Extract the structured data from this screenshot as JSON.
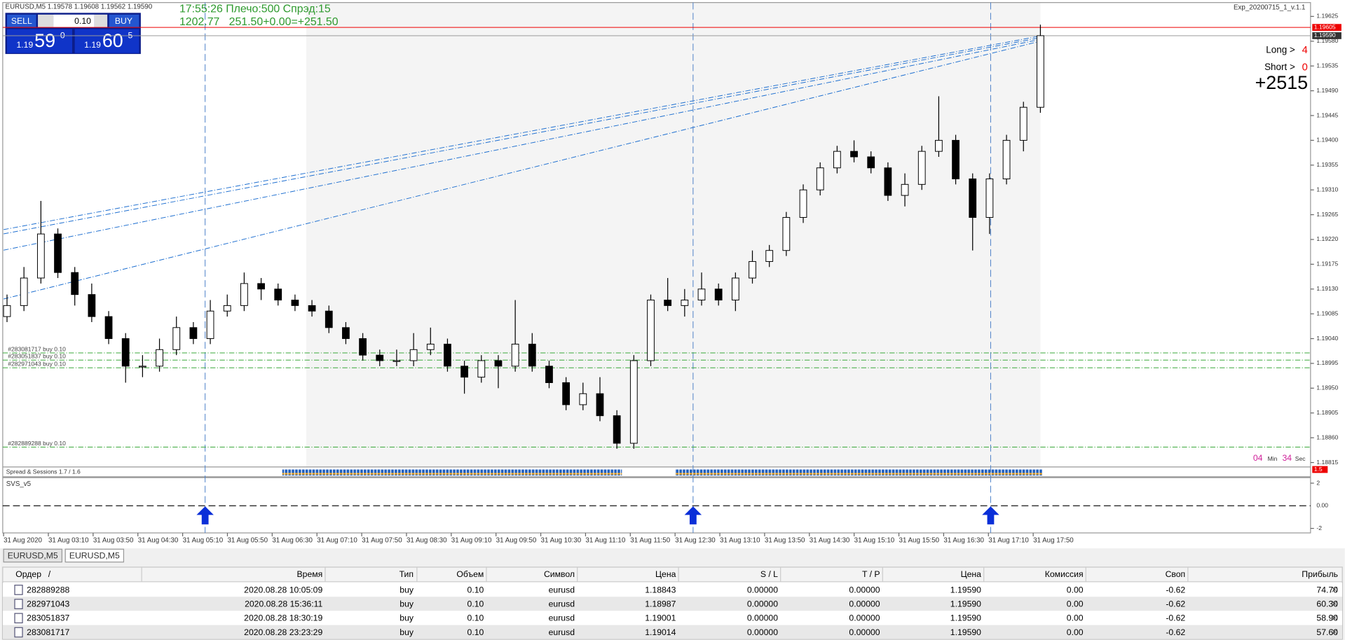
{
  "window": {
    "title": "EURUSD,M5  1.19578 1.19608 1.19562 1.19590",
    "expert": "Exp_20200715_1_v.1.1"
  },
  "trade_panel": {
    "sell": "SELL",
    "buy": "BUY",
    "lot": "0.10",
    "bid": {
      "big": "1.19",
      "pips": "59",
      "point": "0"
    },
    "ask": {
      "big": "1.19",
      "pips": "60",
      "point": "5"
    }
  },
  "info": {
    "line1": "17:55:26 Плечо:500 Спрэд:15",
    "line2": "1202.77   251.50+0.00=+251.50"
  },
  "stats": {
    "long_label": "Long >",
    "long": "4",
    "short_label": "Short >",
    "short": "0",
    "profit": "+2515"
  },
  "timer": {
    "min": "04",
    "min_label": "Min",
    "sec": "34",
    "sec_label": "Sec"
  },
  "chart": {
    "type": "candlestick",
    "ylim": [
      1.18807,
      1.19647
    ],
    "yticks": [
      1.19625,
      {
        "value": 1.1958,
        "label": "1.19580"
      },
      1.19535,
      {
        "value": 1.1949,
        "label": "1.19490"
      },
      1.19445,
      {
        "value": 1.194,
        "label": "1.19400"
      },
      1.19355,
      {
        "value": 1.1931,
        "label": "1.19310"
      },
      1.19265,
      {
        "value": 1.1922,
        "label": "1.19220"
      },
      1.19175,
      {
        "value": 1.1913,
        "label": "1.19130"
      },
      1.19085,
      {
        "value": 1.1904,
        "label": "1.19040"
      },
      1.18995,
      {
        "value": 1.1895,
        "label": "1.18950"
      },
      1.18905,
      {
        "value": 1.1886,
        "label": "1.18860"
      },
      1.18815
    ],
    "ask_line": {
      "value": 1.19605,
      "label": "1.19605"
    },
    "bid_line": {
      "value": 1.1959,
      "label": "1.19590"
    },
    "orders": [
      {
        "label": "#283081717 buy 0.10",
        "price": 1.19014
      },
      {
        "label": "#283051837 buy 0.10",
        "price": 1.19001
      },
      {
        "label": "#282971043 buy 0.10",
        "price": 1.18987
      },
      {
        "label": "#282889288 buy 0.10",
        "price": 1.18843
      }
    ],
    "time_labels": [
      "31 Aug 2020",
      "31 Aug 03:10",
      "31 Aug 03:50",
      "31 Aug 04:30",
      "31 Aug 05:10",
      "31 Aug 05:50",
      "31 Aug 06:30",
      "31 Aug 07:10",
      "31 Aug 07:50",
      "31 Aug 08:30",
      "31 Aug 09:10",
      "31 Aug 09:50",
      "31 Aug 10:30",
      "31 Aug 11:10",
      "31 Aug 11:50",
      "31 Aug 12:30",
      "31 Aug 13:10",
      "31 Aug 13:50",
      "31 Aug 14:30",
      "31 Aug 15:10",
      "31 Aug 15:50",
      "31 Aug 16:30",
      "31 Aug 17:10",
      "31 Aug 17:50"
    ],
    "candles": [
      [
        1.1908,
        1.1912,
        1.1907,
        1.191
      ],
      [
        1.191,
        1.1917,
        1.1909,
        1.1915
      ],
      [
        1.1915,
        1.1929,
        1.1914,
        1.1923
      ],
      [
        1.1923,
        1.1924,
        1.1915,
        1.1916
      ],
      [
        1.1916,
        1.1917,
        1.191,
        1.1912
      ],
      [
        1.1912,
        1.1914,
        1.1907,
        1.1908
      ],
      [
        1.1908,
        1.1909,
        1.1903,
        1.1904
      ],
      [
        1.1904,
        1.1905,
        1.1896,
        1.1899
      ],
      [
        1.1899,
        1.1901,
        1.1897,
        1.1899
      ],
      [
        1.1899,
        1.1904,
        1.1898,
        1.1902
      ],
      [
        1.1902,
        1.1908,
        1.1901,
        1.1906
      ],
      [
        1.1906,
        1.1907,
        1.1903,
        1.1904
      ],
      [
        1.1904,
        1.1911,
        1.1903,
        1.1909
      ],
      [
        1.1909,
        1.1912,
        1.1908,
        1.191
      ],
      [
        1.191,
        1.1916,
        1.1909,
        1.1914
      ],
      [
        1.1914,
        1.1915,
        1.1911,
        1.1913
      ],
      [
        1.1913,
        1.1914,
        1.191,
        1.1911
      ],
      [
        1.1911,
        1.1912,
        1.1909,
        1.191
      ],
      [
        1.191,
        1.1911,
        1.1908,
        1.1909
      ],
      [
        1.1909,
        1.191,
        1.1905,
        1.1906
      ],
      [
        1.1906,
        1.1907,
        1.1903,
        1.1904
      ],
      [
        1.1904,
        1.1905,
        1.19,
        1.1901
      ],
      [
        1.1901,
        1.1902,
        1.1899,
        1.19
      ],
      [
        1.19,
        1.1902,
        1.1899,
        1.19
      ],
      [
        1.19,
        1.1905,
        1.1899,
        1.1902
      ],
      [
        1.1902,
        1.1906,
        1.1901,
        1.1903
      ],
      [
        1.1903,
        1.1904,
        1.1898,
        1.1899
      ],
      [
        1.1899,
        1.19,
        1.1894,
        1.1897
      ],
      [
        1.1897,
        1.1901,
        1.1896,
        1.19
      ],
      [
        1.19,
        1.1901,
        1.1895,
        1.1899
      ],
      [
        1.1899,
        1.1911,
        1.1898,
        1.1903
      ],
      [
        1.1903,
        1.1905,
        1.1898,
        1.1899
      ],
      [
        1.1899,
        1.19,
        1.1895,
        1.1896
      ],
      [
        1.1896,
        1.1897,
        1.1891,
        1.1892
      ],
      [
        1.1892,
        1.1896,
        1.1891,
        1.1894
      ],
      [
        1.1894,
        1.1897,
        1.1889,
        1.189
      ],
      [
        1.189,
        1.1891,
        1.1884,
        1.1885
      ],
      [
        1.1885,
        1.1901,
        1.1884,
        1.19
      ],
      [
        1.19,
        1.1912,
        1.1899,
        1.1911
      ],
      [
        1.1911,
        1.1915,
        1.1909,
        1.191
      ],
      [
        1.191,
        1.1913,
        1.1908,
        1.1911
      ],
      [
        1.1911,
        1.1916,
        1.191,
        1.1913
      ],
      [
        1.1913,
        1.1914,
        1.191,
        1.1911
      ],
      [
        1.1911,
        1.1916,
        1.1909,
        1.1915
      ],
      [
        1.1915,
        1.192,
        1.1914,
        1.1918
      ],
      [
        1.1918,
        1.1921,
        1.1917,
        1.192
      ],
      [
        1.192,
        1.1927,
        1.1919,
        1.1926
      ],
      [
        1.1926,
        1.1932,
        1.1925,
        1.1931
      ],
      [
        1.1931,
        1.1936,
        1.193,
        1.1935
      ],
      [
        1.1935,
        1.1939,
        1.1934,
        1.1938
      ],
      [
        1.1938,
        1.194,
        1.1936,
        1.1937
      ],
      [
        1.1937,
        1.1938,
        1.1934,
        1.1935
      ],
      [
        1.1935,
        1.1936,
        1.1929,
        1.193
      ],
      [
        1.193,
        1.1934,
        1.1928,
        1.1932
      ],
      [
        1.1932,
        1.1939,
        1.1931,
        1.1938
      ],
      [
        1.1938,
        1.1948,
        1.1937,
        1.194
      ],
      [
        1.194,
        1.1941,
        1.1932,
        1.1933
      ],
      [
        1.1933,
        1.1934,
        1.192,
        1.1926
      ],
      [
        1.1926,
        1.1934,
        1.1923,
        1.1933
      ],
      [
        1.1933,
        1.1941,
        1.1932,
        1.194
      ],
      [
        1.194,
        1.1947,
        1.1938,
        1.1946
      ],
      [
        1.1946,
        1.1961,
        1.1945,
        1.1959
      ]
    ]
  },
  "spread_pane": {
    "title": "Spread & Sessions 1.7 / 1.6",
    "level": "1.5"
  },
  "svs_pane": {
    "title": "SVS_v5",
    "ylim": [
      -2.4,
      2.45
    ],
    "yticks": [
      2,
      {
        "value": 0,
        "label": "0.00"
      },
      -2
    ]
  },
  "tabs": [
    "EURUSD,M5",
    "EURUSD,M5"
  ],
  "table": {
    "headers": [
      "Ордер",
      "/",
      "Время",
      "Тип",
      "Объем",
      "Символ",
      "Цена",
      "S / L",
      "T / P",
      "Цена",
      "Комиссия",
      "Своп",
      "Прибыль"
    ],
    "rows": [
      [
        "282889288",
        "2020.08.28 10:05:09",
        "buy",
        "0.10",
        "eurusd",
        "1.18843",
        "0.00000",
        "0.00000",
        "1.19590",
        "0.00",
        "-0.62",
        "74.70"
      ],
      [
        "282971043",
        "2020.08.28 15:36:11",
        "buy",
        "0.10",
        "eurusd",
        "1.18987",
        "0.00000",
        "0.00000",
        "1.19590",
        "0.00",
        "-0.62",
        "60.30"
      ],
      [
        "283051837",
        "2020.08.28 18:30:19",
        "buy",
        "0.10",
        "eurusd",
        "1.19001",
        "0.00000",
        "0.00000",
        "1.19590",
        "0.00",
        "-0.62",
        "58.90"
      ],
      [
        "283081717",
        "2020.08.28 23:23:29",
        "buy",
        "0.10",
        "eurusd",
        "1.19014",
        "0.00000",
        "0.00000",
        "1.19590",
        "0.00",
        "-0.62",
        "57.60"
      ]
    ]
  }
}
